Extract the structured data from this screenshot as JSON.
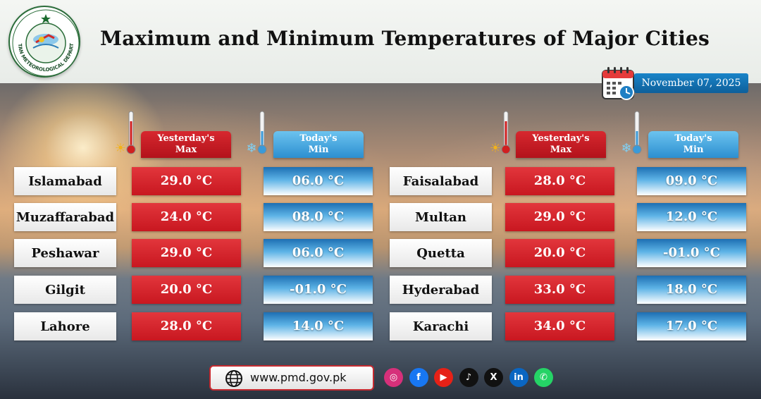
{
  "header": {
    "title": "Maximum and Minimum Temperatures of  Major Cities",
    "logo_text": "PAKISTAN METEOROLOGICAL DEPARTMENT",
    "date": "November 07, 2025"
  },
  "columns": {
    "max_label": "Yesterday's",
    "max_sub": "Max",
    "min_label": "Today's",
    "min_sub": "Min"
  },
  "left_cities": [
    {
      "city": "Islamabad",
      "max": "29.0 °C",
      "min": "06.0 °C"
    },
    {
      "city": "Muzaffarabad",
      "max": "24.0 °C",
      "min": "08.0 °C"
    },
    {
      "city": "Peshawar",
      "max": "29.0 °C",
      "min": "06.0 °C"
    },
    {
      "city": "Gilgit",
      "max": "20.0 °C",
      "min": "-01.0 °C"
    },
    {
      "city": "Lahore",
      "max": "28.0 °C",
      "min": "14.0 °C"
    }
  ],
  "right_cities": [
    {
      "city": "Faisalabad",
      "max": "28.0 °C",
      "min": "09.0 °C"
    },
    {
      "city": "Multan",
      "max": "29.0 °C",
      "min": "12.0 °C"
    },
    {
      "city": "Quetta",
      "max": "20.0 °C",
      "min": "-01.0 °C"
    },
    {
      "city": "Hyderabad",
      "max": "33.0 °C",
      "min": "18.0 °C"
    },
    {
      "city": "Karachi",
      "max": "34.0 °C",
      "min": "17.0 °C"
    }
  ],
  "footer": {
    "website": "www.pmd.gov.pk",
    "social": [
      {
        "name": "instagram-icon",
        "glyph": "◎",
        "color": "#d6307a"
      },
      {
        "name": "facebook-icon",
        "glyph": "f",
        "color": "#1877f2"
      },
      {
        "name": "youtube-icon",
        "glyph": "▶",
        "color": "#e62117"
      },
      {
        "name": "tiktok-icon",
        "glyph": "♪",
        "color": "#111111"
      },
      {
        "name": "x-icon",
        "glyph": "X",
        "color": "#111111"
      },
      {
        "name": "linkedin-icon",
        "glyph": "in",
        "color": "#0a66c2"
      },
      {
        "name": "whatsapp-icon",
        "glyph": "✆",
        "color": "#25d366"
      }
    ]
  },
  "colors": {
    "max_red": "#c81720",
    "min_blue": "#2c8fd0",
    "date_blue": "#0d5f9b"
  }
}
